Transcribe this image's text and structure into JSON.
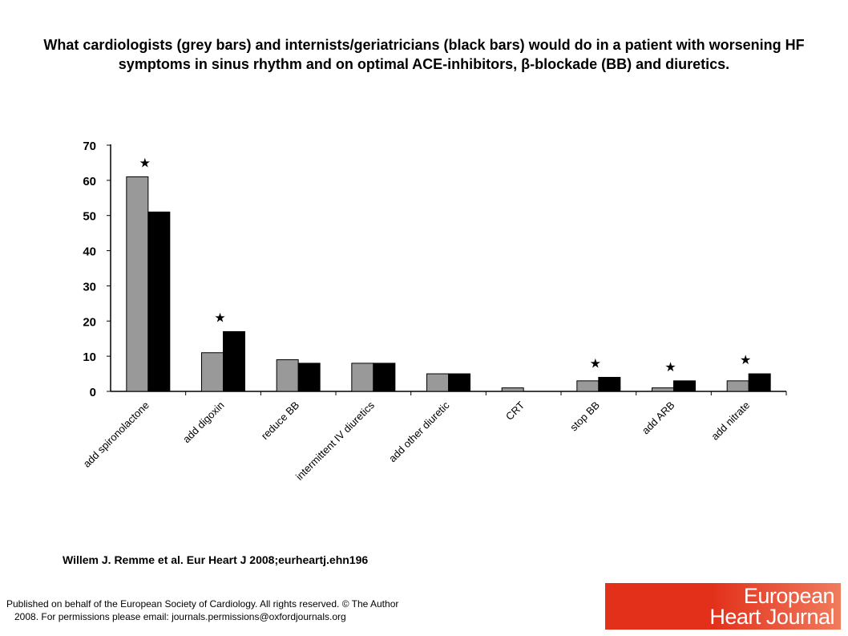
{
  "title": "What cardiologists (grey bars) and internists/geriatricians (black bars) would do in a patient with worsening HF symptoms in sinus rhythm and on optimal ACE-inhibitors, β-blockade (BB) and diuretics.",
  "citation": "Willem J. Remme et al. Eur Heart J 2008;eurheartj.ehn196",
  "footer": {
    "line1": "Published on behalf of the European Society of Cardiology. All rights reserved. © The Author",
    "line2": "2008. For permissions please email: journals.permissions@oxfordjournals.org"
  },
  "logo": {
    "word1": "European",
    "word2": "Heart Journal",
    "color": "#e2301a"
  },
  "chart_data": {
    "type": "bar",
    "ylim": [
      0,
      70
    ],
    "yticks": [
      0,
      10,
      20,
      30,
      40,
      50,
      60,
      70
    ],
    "grid": false,
    "legend": "none",
    "categories": [
      "add spironolactone",
      "add digoxin",
      "reduce BB",
      "intermittent IV diuretics",
      "add other diuretic",
      "CRT",
      "stop BB",
      "add ARB",
      "add nitrate"
    ],
    "series": [
      {
        "values": [
          61,
          11,
          9,
          8,
          5,
          1,
          3,
          1,
          3
        ],
        "color": "#999999"
      },
      {
        "values": [
          51,
          17,
          8,
          8,
          5,
          0,
          4,
          3,
          5
        ],
        "color": "#000000"
      }
    ],
    "significance_marker": "★",
    "significant_categories": [
      0,
      1,
      6,
      7,
      8
    ]
  }
}
